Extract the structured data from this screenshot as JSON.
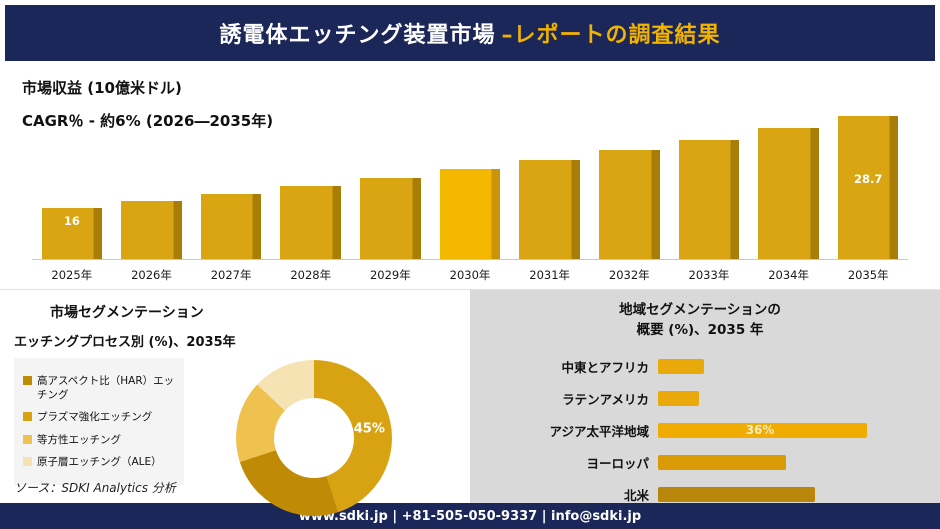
{
  "colors": {
    "navy": "#1B2758",
    "header_accent": "#F2B200",
    "panel_gray": "#D9D9D9"
  },
  "header": {
    "title_main": "誘電体エッチング装置市場",
    "title_accent": "–レポートの調査結果"
  },
  "footer": {
    "text": "www.sdki.jp | +81-505-050-9337 | info@sdki.jp"
  },
  "chart_data": [
    {
      "type": "bar",
      "title": "市場収益 (10億米ドル)",
      "subtitle": "CAGR％ - 約6% (2026―2035年)",
      "categories": [
        "2025年",
        "2026年",
        "2027年",
        "2028年",
        "2029年",
        "2030年",
        "2031年",
        "2032年",
        "2033年",
        "2034年",
        "2035年"
      ],
      "values": [
        16,
        17,
        18,
        19.1,
        20.2,
        21.4,
        22.7,
        24.1,
        25.5,
        27.1,
        28.7
      ],
      "value_labels": [
        {
          "index": 0,
          "text": "16",
          "top": 6
        },
        {
          "index": 10,
          "text": "28.7",
          "top": 56
        }
      ],
      "ylim": [
        9,
        30
      ],
      "grid": false,
      "legend": "none",
      "bar_color": "#D9A512",
      "bar_side_color": "#A87E08",
      "highlight_index": 5,
      "highlight_color": "#F5B800",
      "highlight_side_color": "#C9940A"
    },
    {
      "type": "pie",
      "donut": true,
      "title": "市場セグメンテーション",
      "subtitle": "エッチングプロセス別 (%)、2035年",
      "source": "ソース：SDKI Analytics 分析",
      "segments": [
        {
          "label": "高アスペクト比（HAR）エッチング",
          "value": 25,
          "color": "#BF8A06"
        },
        {
          "label": "プラズマ強化エッチング",
          "value": 45,
          "color": "#D8A313",
          "show_label": "45%"
        },
        {
          "label": "等方性エッチング",
          "value": 17,
          "color": "#EFC14F"
        },
        {
          "label": "原子層エッチング（ALE）",
          "value": 13,
          "color": "#F6E3B4"
        }
      ],
      "donut_order": [
        1,
        0,
        2,
        3
      ]
    },
    {
      "type": "bar-horizontal",
      "title_line1": "地域セグメンテーションの",
      "title_line2": "概要 (%)、2035 年",
      "xlim": [
        0,
        40
      ],
      "rows": [
        {
          "label": "中東とアフリカ",
          "value": 8,
          "color": "#E9A90B"
        },
        {
          "label": "ラテンアメリカ",
          "value": 7,
          "color": "#E9A90B"
        },
        {
          "label": "アジア太平洋地域",
          "value": 36,
          "color": "#F0AC00",
          "show_label": "36%"
        },
        {
          "label": "ヨーロッパ",
          "value": 22,
          "color": "#D99A06"
        },
        {
          "label": "北米",
          "value": 27,
          "color": "#B8860B"
        }
      ]
    }
  ]
}
